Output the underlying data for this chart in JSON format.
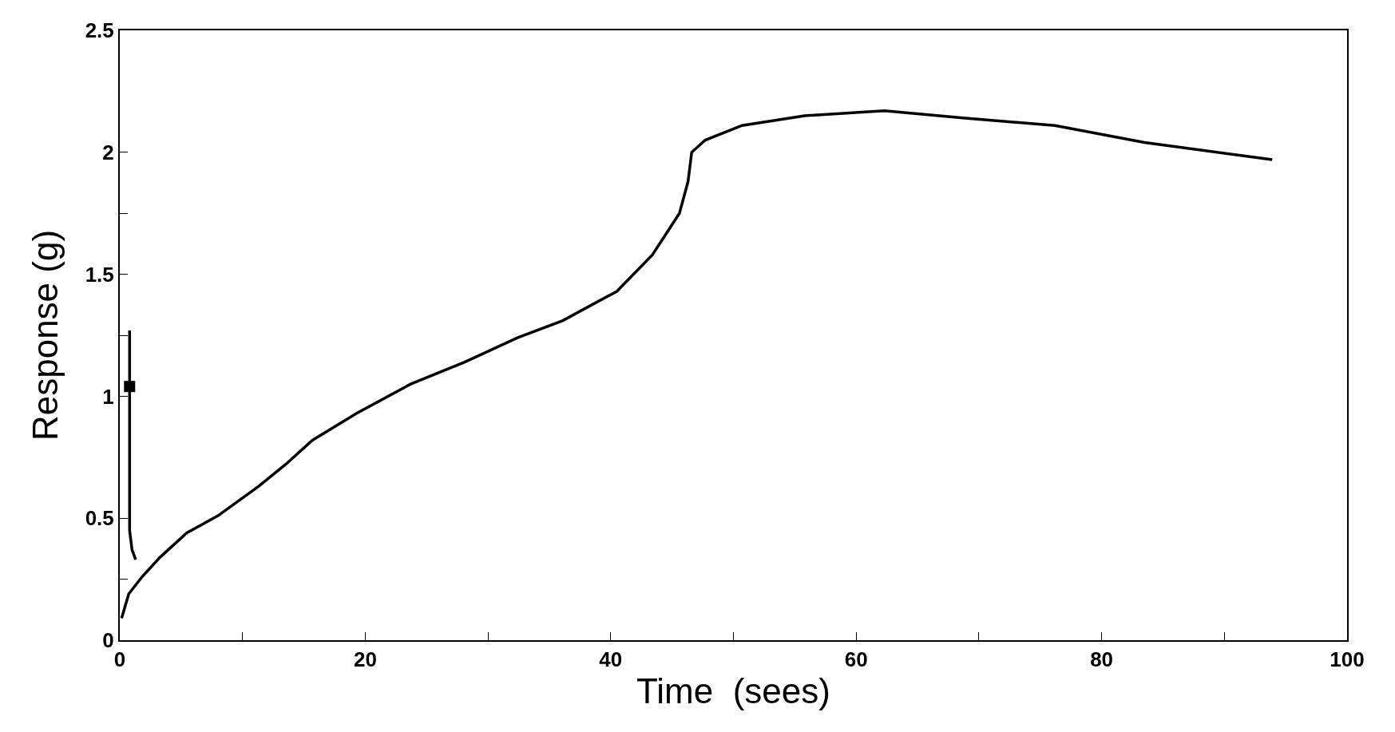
{
  "chart_data": {
    "type": "line",
    "xlabel": "Time  (sees)",
    "ylabel": "Response (g)",
    "xlim": [
      0,
      100
    ],
    "ylim": [
      0,
      2.5
    ],
    "xticks": [
      0,
      {
        "value": 10,
        "label": null
      },
      20,
      {
        "value": 30,
        "label": null
      },
      40,
      {
        "value": 50,
        "label": null
      },
      60,
      {
        "value": 70,
        "label": null
      },
      80,
      {
        "value": 90,
        "label": null
      },
      100
    ],
    "yticks": [
      0,
      {
        "value": 0.25,
        "label": null
      },
      0.5,
      1,
      {
        "value": 1.25,
        "label": null
      },
      1.5,
      {
        "value": 1.75,
        "label": null
      },
      2,
      2.5
    ],
    "grid": false,
    "marker": "none",
    "line_style": "solid",
    "series": [
      {
        "color": "#000000",
        "x": [
          0.15,
          0.73,
          1.82,
          3.28,
          5.47,
          8.0,
          11.3,
          13.5,
          15.7,
          19.3,
          23.7,
          28.1,
          32.4,
          36.1,
          40.5,
          43.4,
          45.6,
          46.3,
          46.6,
          47.7,
          50.7,
          55.8,
          62.3,
          68.9,
          76.2,
          83.5,
          93.9
        ],
        "values": [
          0.09,
          0.19,
          0.26,
          0.34,
          0.44,
          0.51,
          0.63,
          0.72,
          0.82,
          0.93,
          1.05,
          1.14,
          1.24,
          1.31,
          1.43,
          1.58,
          1.75,
          1.88,
          2.0,
          2.05,
          2.11,
          2.15,
          2.17,
          2.14,
          2.11,
          2.04,
          1.97
        ]
      },
      {
        "color": "#000000",
        "x": [
          0.8,
          0.8,
          0.8,
          1.0,
          1.3
        ],
        "values": [
          1.27,
          0.8,
          0.45,
          0.37,
          0.33
        ]
      },
      {
        "type": "scatter",
        "color": "#000000",
        "marker": "square",
        "x": [
          0.8
        ],
        "values": [
          1.04
        ]
      }
    ]
  }
}
